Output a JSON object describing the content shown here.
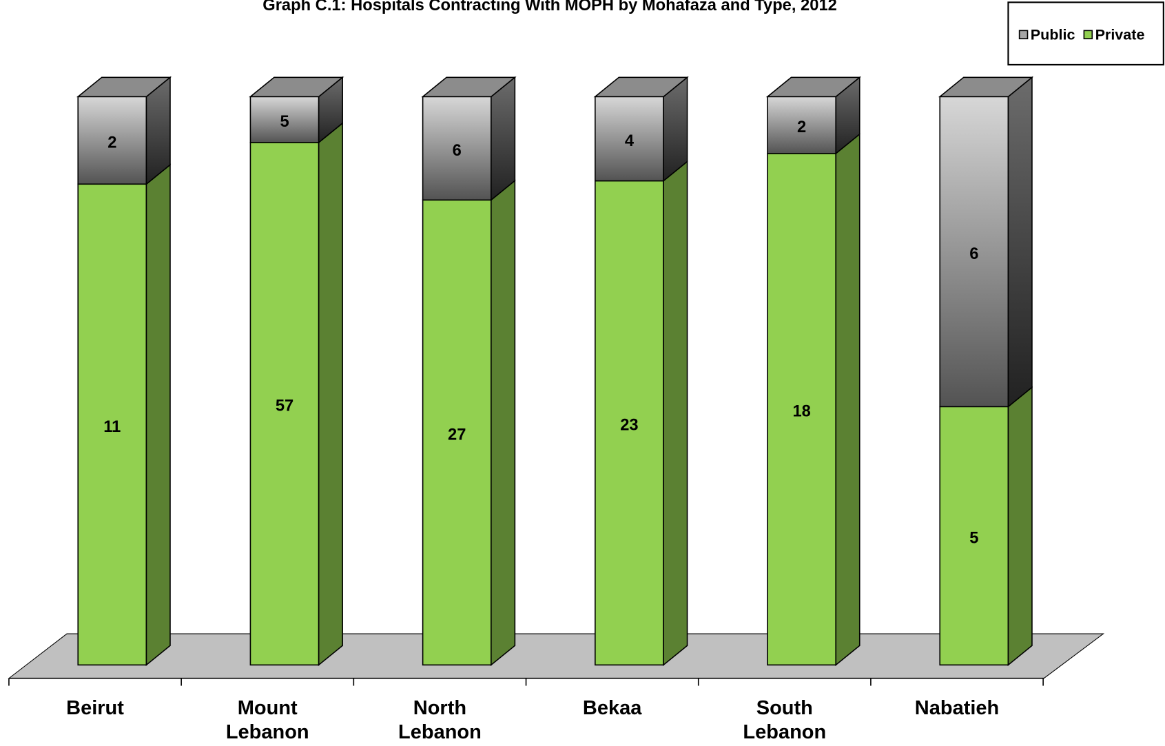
{
  "chart_data": {
    "type": "bar",
    "stacked": "percent",
    "title": "Graph C.1: Hospitals Contracting With MOPH by Mohafaza and Type, 2012",
    "categories": [
      "Beirut",
      "Mount Lebanon",
      "North Lebanon",
      "Bekaa",
      "South Lebanon",
      "Nabatieh"
    ],
    "series": [
      {
        "name": "Private",
        "color": "#92d050",
        "values": [
          11,
          57,
          27,
          23,
          18,
          5
        ]
      },
      {
        "name": "Public",
        "color": "#a6a6a6",
        "values": [
          2,
          5,
          6,
          4,
          2,
          6
        ]
      }
    ],
    "legend": "top-right"
  }
}
